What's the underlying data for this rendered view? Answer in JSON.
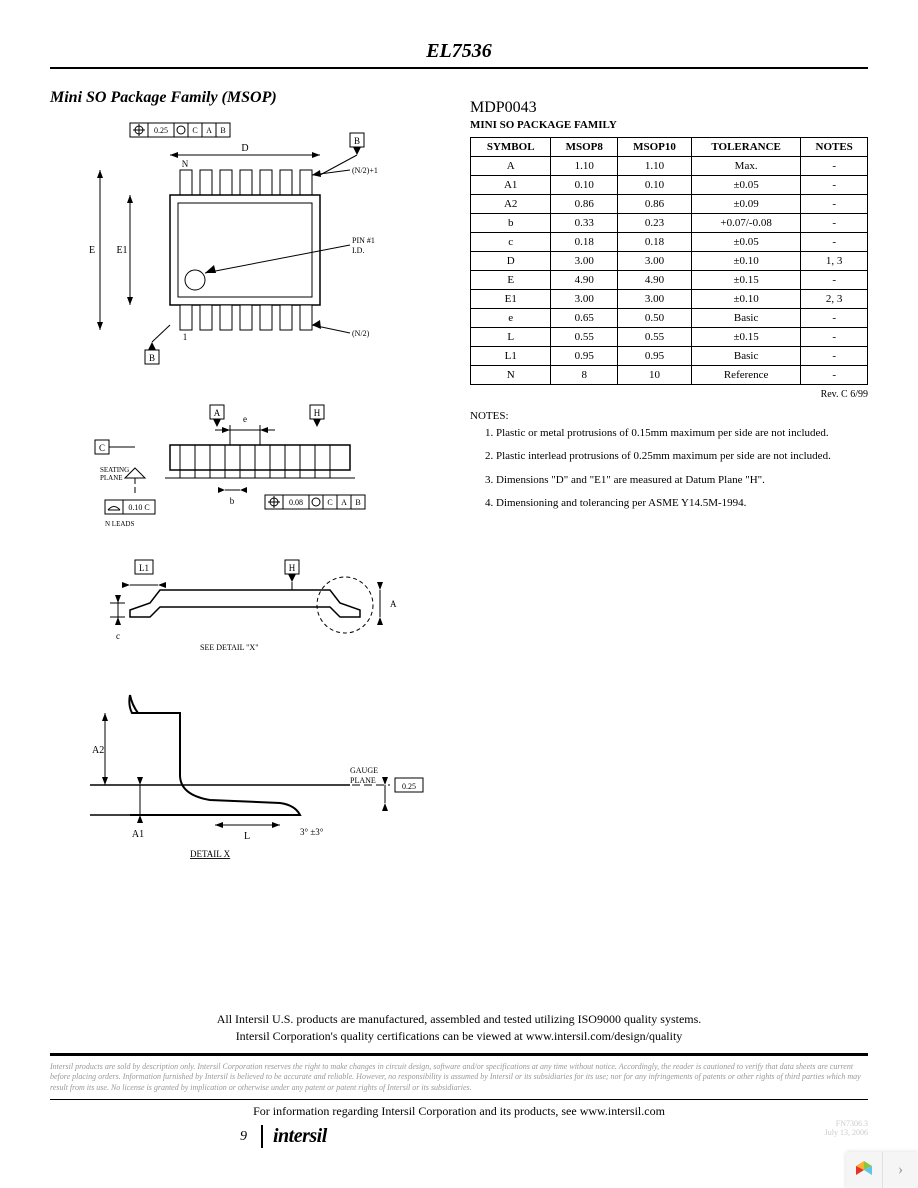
{
  "header": {
    "part_number": "EL7536"
  },
  "section": {
    "title": "Mini SO Package Family (MSOP)"
  },
  "diagram": {
    "top_view": {
      "tol_box": "0.25",
      "datums": [
        "C",
        "A",
        "B"
      ],
      "dim_D": "D",
      "dim_E": "E",
      "dim_E1": "E1",
      "pin_n": "N",
      "pin_n2_top": "(N/2)+1",
      "pin_1": "1",
      "pin_n2_bot": "(N/2)",
      "pin1_id": "PIN #1\nI.D.",
      "datum_b1": "B",
      "datum_b2": "B"
    },
    "side_view": {
      "dim_e": "e",
      "datum_a": "A",
      "datum_h": "H",
      "datum_c": "C",
      "seating": "SEATING\nPLANE",
      "flat_c": "0.10 C",
      "nleads": "N LEADS",
      "dim_b": "b",
      "tol_box": "0.08",
      "tol_datums": "C A B"
    },
    "end_view": {
      "datum_l1": "L1",
      "datum_h": "H",
      "dim_c": "c",
      "dim_A": "A",
      "detail_ref": "SEE DETAIL \"X\""
    },
    "detail_x": {
      "dim_A2": "A2",
      "dim_A1": "A1",
      "dim_L": "L",
      "angle": "3° ±3°",
      "gauge": "GAUGE\nPLANE",
      "gauge_val": "0.25",
      "label": "DETAIL X"
    }
  },
  "table": {
    "code": "MDP0043",
    "title": "MINI SO PACKAGE FAMILY",
    "columns": [
      "SYMBOL",
      "MSOP8",
      "MSOP10",
      "TOLERANCE",
      "NOTES"
    ],
    "rows": [
      [
        "A",
        "1.10",
        "1.10",
        "Max.",
        "-"
      ],
      [
        "A1",
        "0.10",
        "0.10",
        "±0.05",
        "-"
      ],
      [
        "A2",
        "0.86",
        "0.86",
        "±0.09",
        "-"
      ],
      [
        "b",
        "0.33",
        "0.23",
        "+0.07/-0.08",
        "-"
      ],
      [
        "c",
        "0.18",
        "0.18",
        "±0.05",
        "-"
      ],
      [
        "D",
        "3.00",
        "3.00",
        "±0.10",
        "1, 3"
      ],
      [
        "E",
        "4.90",
        "4.90",
        "±0.15",
        "-"
      ],
      [
        "E1",
        "3.00",
        "3.00",
        "±0.10",
        "2, 3"
      ],
      [
        "e",
        "0.65",
        "0.50",
        "Basic",
        "-"
      ],
      [
        "L",
        "0.55",
        "0.55",
        "±0.15",
        "-"
      ],
      [
        "L1",
        "0.95",
        "0.95",
        "Basic",
        "-"
      ],
      [
        "N",
        "8",
        "10",
        "Reference",
        "-"
      ]
    ],
    "revision": "Rev. C 6/99"
  },
  "notes": {
    "heading": "NOTES:",
    "items": [
      "Plastic or metal protrusions of 0.15mm maximum per side are not included.",
      "Plastic interlead protrusions of 0.25mm maximum per side are not included.",
      "Dimensions \"D\" and \"E1\" are measured at Datum Plane \"H\".",
      "Dimensioning and tolerancing per ASME Y14.5M-1994."
    ]
  },
  "footer": {
    "quality1": "All Intersil U.S. products are manufactured, assembled and tested utilizing ISO9000 quality systems.",
    "quality2": "Intersil Corporation's quality certifications can be viewed at www.intersil.com/design/quality",
    "disclaimer": "Intersil products are sold by description only. Intersil Corporation reserves the right to make changes in circuit design, software and/or specifications at any time without notice. Accordingly, the reader is cautioned to verify that data sheets are current before placing orders. Information furnished by Intersil is believed to be accurate and reliable. However, no responsibility is assumed by Intersil or its subsidiaries for its use; nor for any infringements of patents or other rights of third parties which may result from its use. No license is granted by implication or otherwise under any patent or patent rights of Intersil or its subsidiaries.",
    "info": "For information regarding Intersil Corporation and its products, see www.intersil.com",
    "page_number": "9",
    "logo": "intersil",
    "stamp_code": "FN7306.3",
    "stamp_date": "July 13, 2006"
  }
}
